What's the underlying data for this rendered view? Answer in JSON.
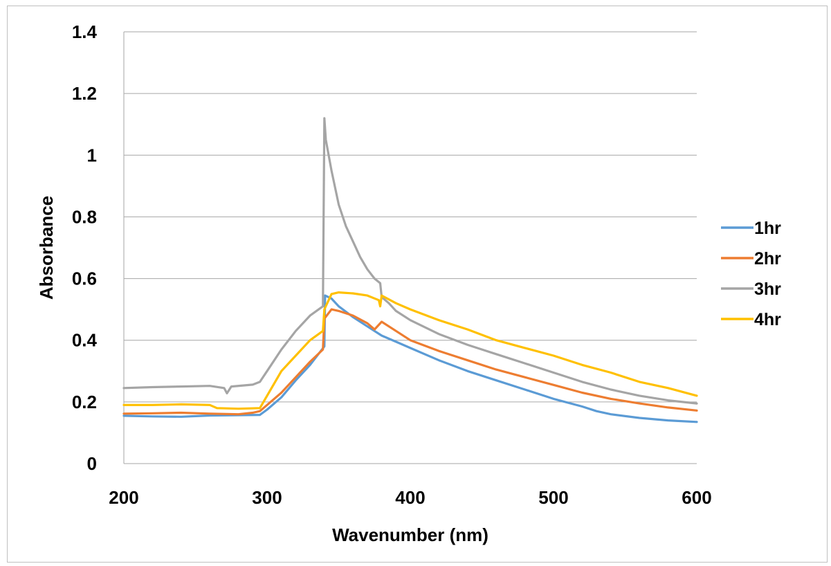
{
  "chart_data": {
    "type": "line",
    "title": "",
    "xlabel": "Wavenumber (nm)",
    "ylabel": "Absorbance",
    "xlim": [
      200,
      600
    ],
    "ylim": [
      0,
      1.4
    ],
    "x_ticks": [
      "200",
      "300",
      "400",
      "500",
      "600"
    ],
    "y_ticks": [
      "0",
      "0.2",
      "0.4",
      "0.6",
      "0.8",
      "1",
      "1.2",
      "1.4"
    ],
    "grid": "horizontal",
    "legend_position": "right",
    "series": [
      {
        "name": "1hr",
        "color": "#5B9BD5",
        "points": [
          [
            200,
            0.155
          ],
          [
            220,
            0.153
          ],
          [
            240,
            0.152
          ],
          [
            260,
            0.156
          ],
          [
            280,
            0.157
          ],
          [
            295,
            0.158
          ],
          [
            300,
            0.175
          ],
          [
            310,
            0.215
          ],
          [
            320,
            0.27
          ],
          [
            330,
            0.32
          ],
          [
            340,
            0.38
          ],
          [
            340.5,
            0.545
          ],
          [
            345,
            0.535
          ],
          [
            350,
            0.51
          ],
          [
            360,
            0.475
          ],
          [
            370,
            0.445
          ],
          [
            380,
            0.415
          ],
          [
            390,
            0.395
          ],
          [
            400,
            0.375
          ],
          [
            420,
            0.335
          ],
          [
            440,
            0.3
          ],
          [
            460,
            0.27
          ],
          [
            480,
            0.24
          ],
          [
            500,
            0.21
          ],
          [
            520,
            0.185
          ],
          [
            530,
            0.17
          ],
          [
            540,
            0.16
          ],
          [
            560,
            0.148
          ],
          [
            580,
            0.14
          ],
          [
            600,
            0.135
          ]
        ]
      },
      {
        "name": "2hr",
        "color": "#ED7D31",
        "points": [
          [
            200,
            0.162
          ],
          [
            220,
            0.163
          ],
          [
            240,
            0.165
          ],
          [
            260,
            0.162
          ],
          [
            280,
            0.16
          ],
          [
            290,
            0.165
          ],
          [
            295,
            0.17
          ],
          [
            300,
            0.19
          ],
          [
            310,
            0.23
          ],
          [
            320,
            0.28
          ],
          [
            330,
            0.33
          ],
          [
            339,
            0.37
          ],
          [
            340,
            0.47
          ],
          [
            345,
            0.5
          ],
          [
            350,
            0.495
          ],
          [
            360,
            0.48
          ],
          [
            370,
            0.455
          ],
          [
            375,
            0.435
          ],
          [
            380,
            0.46
          ],
          [
            390,
            0.43
          ],
          [
            400,
            0.4
          ],
          [
            420,
            0.365
          ],
          [
            440,
            0.335
          ],
          [
            460,
            0.305
          ],
          [
            480,
            0.28
          ],
          [
            500,
            0.255
          ],
          [
            520,
            0.23
          ],
          [
            540,
            0.21
          ],
          [
            560,
            0.195
          ],
          [
            580,
            0.182
          ],
          [
            600,
            0.172
          ]
        ]
      },
      {
        "name": "3hr",
        "color": "#A5A5A5",
        "points": [
          [
            200,
            0.245
          ],
          [
            220,
            0.248
          ],
          [
            240,
            0.25
          ],
          [
            260,
            0.252
          ],
          [
            270,
            0.245
          ],
          [
            272,
            0.228
          ],
          [
            275,
            0.25
          ],
          [
            290,
            0.256
          ],
          [
            295,
            0.265
          ],
          [
            300,
            0.3
          ],
          [
            310,
            0.37
          ],
          [
            320,
            0.43
          ],
          [
            330,
            0.48
          ],
          [
            339,
            0.51
          ],
          [
            340,
            1.12
          ],
          [
            341,
            1.05
          ],
          [
            345,
            0.95
          ],
          [
            350,
            0.84
          ],
          [
            355,
            0.77
          ],
          [
            360,
            0.72
          ],
          [
            365,
            0.67
          ],
          [
            370,
            0.63
          ],
          [
            375,
            0.6
          ],
          [
            379,
            0.585
          ],
          [
            380,
            0.54
          ],
          [
            385,
            0.52
          ],
          [
            390,
            0.495
          ],
          [
            400,
            0.465
          ],
          [
            420,
            0.42
          ],
          [
            440,
            0.385
          ],
          [
            460,
            0.355
          ],
          [
            480,
            0.325
          ],
          [
            500,
            0.295
          ],
          [
            520,
            0.265
          ],
          [
            540,
            0.24
          ],
          [
            560,
            0.22
          ],
          [
            580,
            0.205
          ],
          [
            600,
            0.195
          ]
        ]
      },
      {
        "name": "4hr",
        "color": "#FFC000",
        "points": [
          [
            200,
            0.19
          ],
          [
            220,
            0.19
          ],
          [
            240,
            0.192
          ],
          [
            260,
            0.19
          ],
          [
            265,
            0.18
          ],
          [
            280,
            0.178
          ],
          [
            295,
            0.18
          ],
          [
            300,
            0.22
          ],
          [
            305,
            0.26
          ],
          [
            310,
            0.3
          ],
          [
            320,
            0.35
          ],
          [
            330,
            0.4
          ],
          [
            339,
            0.43
          ],
          [
            340,
            0.5
          ],
          [
            345,
            0.55
          ],
          [
            350,
            0.555
          ],
          [
            360,
            0.552
          ],
          [
            370,
            0.545
          ],
          [
            378,
            0.53
          ],
          [
            379,
            0.51
          ],
          [
            380,
            0.545
          ],
          [
            390,
            0.52
          ],
          [
            400,
            0.5
          ],
          [
            420,
            0.465
          ],
          [
            440,
            0.435
          ],
          [
            460,
            0.4
          ],
          [
            480,
            0.375
          ],
          [
            500,
            0.35
          ],
          [
            520,
            0.32
          ],
          [
            540,
            0.295
          ],
          [
            560,
            0.265
          ],
          [
            580,
            0.245
          ],
          [
            600,
            0.22
          ]
        ]
      }
    ]
  }
}
